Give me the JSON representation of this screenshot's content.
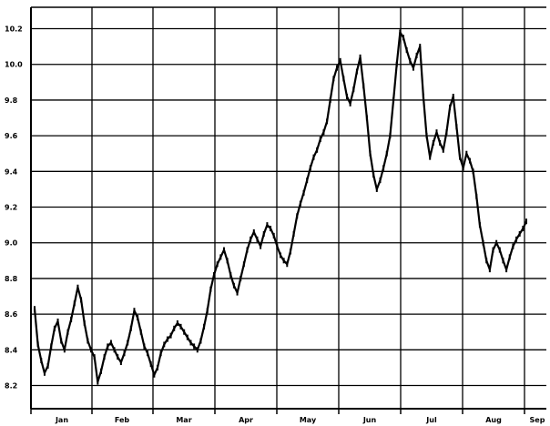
{
  "chart_data": {
    "type": "line",
    "title": "",
    "xlabel": "",
    "ylabel": "",
    "grid": true,
    "legend": "none",
    "colors": {
      "line": "#000000",
      "grid": "#000000",
      "background": "#ffffff"
    },
    "x_ticks": [
      "Jan",
      "Feb",
      "Mar",
      "Apr",
      "May",
      "Jun",
      "Jul",
      "Aug",
      "Sep"
    ],
    "y_ticks": [
      "10.2",
      "10.0",
      "9.8",
      "9.6",
      "9.4",
      "9.2",
      "9.0",
      "8.8",
      "8.6",
      "8.4",
      "8.2"
    ],
    "ylim": [
      8.07,
      10.32
    ],
    "xlim": [
      "Dec 28",
      "Sep 3"
    ],
    "series": [
      {
        "values": [
          [
            0,
            8.63
          ],
          [
            1,
            8.43
          ],
          [
            2,
            8.34
          ],
          [
            3,
            8.27
          ],
          [
            4,
            8.31
          ],
          [
            5,
            8.42
          ],
          [
            6,
            8.52
          ],
          [
            7,
            8.56
          ],
          [
            8,
            8.45
          ],
          [
            9,
            8.4
          ],
          [
            10,
            8.5
          ],
          [
            11,
            8.57
          ],
          [
            12,
            8.66
          ],
          [
            13,
            8.75
          ],
          [
            14,
            8.68
          ],
          [
            15,
            8.55
          ],
          [
            16,
            8.45
          ],
          [
            17,
            8.4
          ],
          [
            18,
            8.36
          ],
          [
            19,
            8.22
          ],
          [
            20,
            8.28
          ],
          [
            21,
            8.36
          ],
          [
            22,
            8.42
          ],
          [
            23,
            8.44
          ],
          [
            24,
            8.4
          ],
          [
            25,
            8.36
          ],
          [
            26,
            8.33
          ],
          [
            27,
            8.38
          ],
          [
            28,
            8.44
          ],
          [
            29,
            8.52
          ],
          [
            30,
            8.62
          ],
          [
            31,
            8.58
          ],
          [
            32,
            8.5
          ],
          [
            33,
            8.42
          ],
          [
            34,
            8.38
          ],
          [
            35,
            8.32
          ],
          [
            36,
            8.26
          ],
          [
            37,
            8.3
          ],
          [
            38,
            8.38
          ],
          [
            39,
            8.43
          ],
          [
            40,
            8.46
          ],
          [
            41,
            8.48
          ],
          [
            42,
            8.52
          ],
          [
            43,
            8.55
          ],
          [
            44,
            8.53
          ],
          [
            45,
            8.5
          ],
          [
            46,
            8.47
          ],
          [
            47,
            8.44
          ],
          [
            48,
            8.42
          ],
          [
            49,
            8.4
          ],
          [
            50,
            8.45
          ],
          [
            51,
            8.53
          ],
          [
            52,
            8.62
          ],
          [
            53,
            8.74
          ],
          [
            54,
            8.82
          ],
          [
            55,
            8.88
          ],
          [
            56,
            8.92
          ],
          [
            57,
            8.96
          ],
          [
            58,
            8.9
          ],
          [
            59,
            8.82
          ],
          [
            60,
            8.76
          ],
          [
            61,
            8.72
          ],
          [
            62,
            8.8
          ],
          [
            63,
            8.88
          ],
          [
            64,
            8.96
          ],
          [
            65,
            9.02
          ],
          [
            66,
            9.06
          ],
          [
            67,
            9.02
          ],
          [
            68,
            8.98
          ],
          [
            69,
            9.05
          ],
          [
            70,
            9.1
          ],
          [
            71,
            9.08
          ],
          [
            72,
            9.04
          ],
          [
            73,
            8.98
          ],
          [
            74,
            8.93
          ],
          [
            75,
            8.9
          ],
          [
            76,
            8.88
          ],
          [
            77,
            8.95
          ],
          [
            78,
            9.05
          ],
          [
            79,
            9.15
          ],
          [
            80,
            9.22
          ],
          [
            81,
            9.28
          ],
          [
            82,
            9.35
          ],
          [
            83,
            9.42
          ],
          [
            84,
            9.48
          ],
          [
            85,
            9.52
          ],
          [
            86,
            9.58
          ],
          [
            87,
            9.62
          ],
          [
            88,
            9.68
          ],
          [
            89,
            9.8
          ],
          [
            90,
            9.92
          ],
          [
            91,
            9.98
          ],
          [
            92,
            10.02
          ],
          [
            93,
            9.92
          ],
          [
            94,
            9.82
          ],
          [
            95,
            9.78
          ],
          [
            96,
            9.86
          ],
          [
            97,
            9.96
          ],
          [
            98,
            10.04
          ],
          [
            99,
            9.88
          ],
          [
            100,
            9.7
          ],
          [
            101,
            9.5
          ],
          [
            102,
            9.38
          ],
          [
            103,
            9.3
          ],
          [
            104,
            9.35
          ],
          [
            105,
            9.42
          ],
          [
            106,
            9.5
          ],
          [
            107,
            9.6
          ],
          [
            108,
            9.8
          ],
          [
            109,
            10.0
          ],
          [
            110,
            10.18
          ],
          [
            111,
            10.15
          ],
          [
            112,
            10.08
          ],
          [
            113,
            10.02
          ],
          [
            114,
            9.98
          ],
          [
            115,
            10.05
          ],
          [
            116,
            10.1
          ],
          [
            117,
            9.82
          ],
          [
            118,
            9.6
          ],
          [
            119,
            9.48
          ],
          [
            120,
            9.56
          ],
          [
            121,
            9.62
          ],
          [
            122,
            9.56
          ],
          [
            123,
            9.52
          ],
          [
            124,
            9.62
          ],
          [
            125,
            9.76
          ],
          [
            126,
            9.82
          ],
          [
            127,
            9.65
          ],
          [
            128,
            9.48
          ],
          [
            129,
            9.42
          ],
          [
            130,
            9.5
          ],
          [
            131,
            9.46
          ],
          [
            132,
            9.4
          ],
          [
            133,
            9.26
          ],
          [
            134,
            9.1
          ],
          [
            135,
            9.0
          ],
          [
            136,
            8.9
          ],
          [
            137,
            8.85
          ],
          [
            138,
            8.96
          ],
          [
            139,
            9.0
          ],
          [
            140,
            8.96
          ],
          [
            141,
            8.9
          ],
          [
            142,
            8.85
          ],
          [
            143,
            8.92
          ],
          [
            144,
            8.98
          ],
          [
            145,
            9.02
          ],
          [
            146,
            9.05
          ],
          [
            147,
            9.08
          ],
          [
            148,
            9.12
          ]
        ]
      }
    ]
  }
}
